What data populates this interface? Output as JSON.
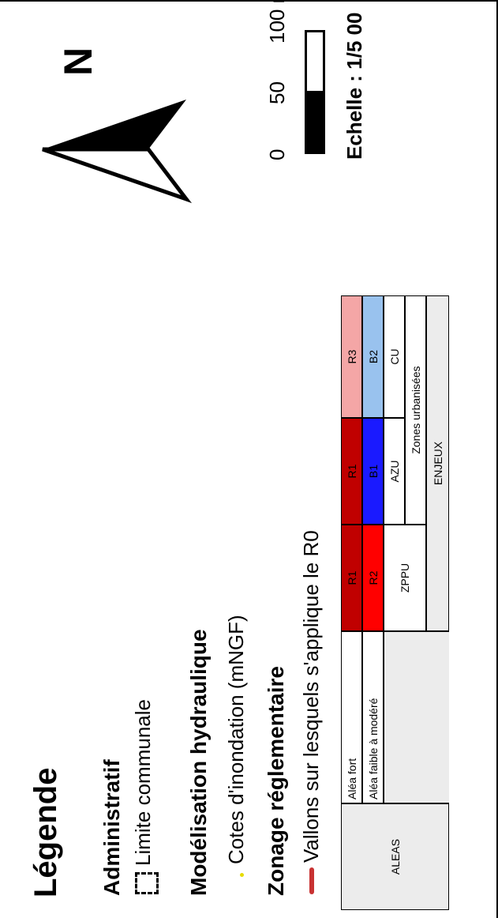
{
  "legend": {
    "title": "Légende",
    "administratif": {
      "heading": "Administratif",
      "limite_communale": "Limite communale"
    },
    "modelisation": {
      "heading": "Modélisation hydraulique",
      "cotes": "Cotes d'inondation (mNGF)"
    },
    "zonage": {
      "heading": "Zonage réglementaire",
      "vallons": "Vallons sur lesquels s'applique le R0"
    }
  },
  "alea_table": {
    "aleas_header": "ALEAS",
    "enjeux_header": "ENJEUX",
    "zones_urbanisees_header": "Zones urbanisées",
    "columns": [
      "ZPPU",
      "AZU",
      "CU"
    ],
    "rows": [
      {
        "label": "Aléa fort",
        "cells": [
          "R1",
          "R1",
          "R3"
        ],
        "colors": [
          "#c00000",
          "#c00000",
          "#f4a6a6"
        ]
      },
      {
        "label": "Aléa faible à modéré",
        "cells": [
          "R2",
          "B1",
          "B2"
        ],
        "colors": [
          "#ff0000",
          "#1a1aff",
          "#99c2ee"
        ]
      }
    ]
  },
  "map_elements": {
    "north_label": "N",
    "north_arrow_icon": "north-arrow-icon",
    "scale_ticks": [
      "0",
      "50",
      "100 m"
    ],
    "scale_text": "Echelle : 1/5 00"
  }
}
